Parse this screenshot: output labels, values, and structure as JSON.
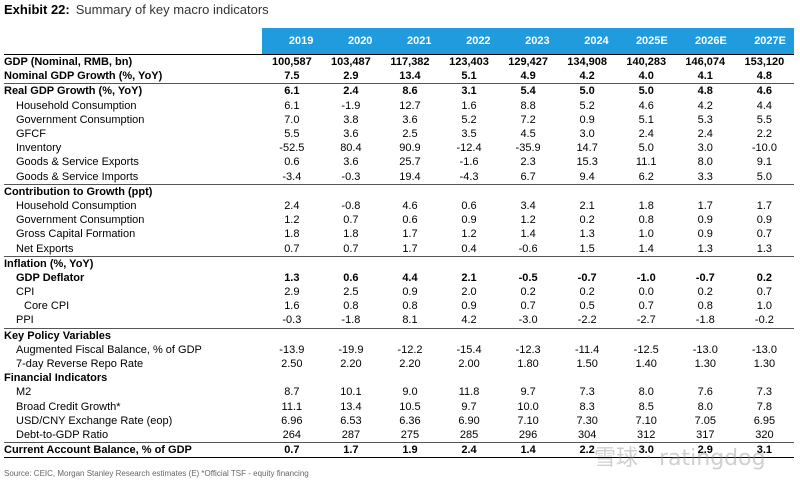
{
  "title": {
    "label": "Exhibit 22:",
    "text": "Summary of key macro indicators"
  },
  "years": [
    "2019",
    "2020",
    "2021",
    "2022",
    "2023",
    "2024",
    "2025E",
    "2026E",
    "2027E"
  ],
  "rows": [
    {
      "label": "GDP (Nominal, RMB, bn)",
      "style": "bold",
      "values": [
        "100,587",
        "103,487",
        "117,382",
        "123,403",
        "129,427",
        "134,908",
        "140,283",
        "146,074",
        "153,120"
      ]
    },
    {
      "label": "Nominal GDP Growth (%, YoY)",
      "style": "bold",
      "values": [
        "7.5",
        "2.9",
        "13.4",
        "5.1",
        "4.9",
        "4.2",
        "4.0",
        "4.1",
        "4.8"
      ]
    },
    {
      "label": "Real GDP Growth (%, YoY)",
      "style": "bold",
      "values": [
        "6.1",
        "2.4",
        "8.6",
        "3.1",
        "5.4",
        "5.0",
        "5.0",
        "4.8",
        "4.6"
      ]
    },
    {
      "label": "Household Consumption",
      "style": "sub",
      "values": [
        "6.1",
        "-1.9",
        "12.7",
        "1.6",
        "8.8",
        "5.2",
        "4.6",
        "4.2",
        "4.4"
      ]
    },
    {
      "label": "Government Consumption",
      "style": "sub",
      "values": [
        "7.0",
        "3.8",
        "3.6",
        "5.2",
        "7.2",
        "0.9",
        "5.1",
        "5.3",
        "5.5"
      ]
    },
    {
      "label": "GFCF",
      "style": "sub",
      "values": [
        "5.5",
        "3.6",
        "2.5",
        "3.5",
        "4.5",
        "3.0",
        "2.4",
        "2.4",
        "2.2"
      ]
    },
    {
      "label": "Inventory",
      "style": "sub",
      "values": [
        "-52.5",
        "80.4",
        "90.9",
        "-12.4",
        "-35.9",
        "14.7",
        "5.0",
        "3.0",
        "-10.0"
      ]
    },
    {
      "label": "Goods & Service Exports",
      "style": "sub",
      "values": [
        "0.6",
        "3.6",
        "25.7",
        "-1.6",
        "2.3",
        "15.3",
        "11.1",
        "8.0",
        "9.1"
      ]
    },
    {
      "label": "Goods & Service Imports",
      "style": "sub",
      "values": [
        "-3.4",
        "-0.3",
        "19.4",
        "-4.3",
        "6.7",
        "9.4",
        "6.2",
        "3.3",
        "5.0"
      ]
    },
    {
      "label": "Contribution to Growth (ppt)",
      "style": "section",
      "values": [
        "",
        "",
        "",
        "",
        "",
        "",
        "",
        "",
        ""
      ]
    },
    {
      "label": "Household Consumption",
      "style": "sub",
      "values": [
        "2.4",
        "-0.8",
        "4.6",
        "0.6",
        "3.4",
        "2.1",
        "1.8",
        "1.7",
        "1.7"
      ]
    },
    {
      "label": "Government Consumption",
      "style": "sub",
      "values": [
        "1.2",
        "0.7",
        "0.6",
        "0.9",
        "1.2",
        "0.2",
        "0.8",
        "0.9",
        "0.9"
      ]
    },
    {
      "label": "Gross Capital Formation",
      "style": "sub",
      "values": [
        "1.8",
        "1.8",
        "1.7",
        "1.2",
        "1.4",
        "1.3",
        "1.0",
        "0.9",
        "0.7"
      ]
    },
    {
      "label": "Net Exports",
      "style": "sub",
      "values": [
        "0.7",
        "0.7",
        "1.7",
        "0.4",
        "-0.6",
        "1.5",
        "1.4",
        "1.3",
        "1.3"
      ]
    },
    {
      "label": "Inflation (%, YoY)",
      "style": "section",
      "values": [
        "",
        "",
        "",
        "",
        "",
        "",
        "",
        "",
        ""
      ]
    },
    {
      "label": "GDP Deflator",
      "style": "subbold",
      "values": [
        "1.3",
        "0.6",
        "4.4",
        "2.1",
        "-0.5",
        "-0.7",
        "-1.0",
        "-0.7",
        "0.2"
      ]
    },
    {
      "label": "CPI",
      "style": "sub",
      "values": [
        "2.9",
        "2.5",
        "0.9",
        "2.0",
        "0.2",
        "0.2",
        "0.0",
        "0.2",
        "0.7"
      ]
    },
    {
      "label": "Core CPI",
      "style": "subsub",
      "values": [
        "1.6",
        "0.8",
        "0.8",
        "0.9",
        "0.7",
        "0.5",
        "0.7",
        "0.8",
        "1.0"
      ]
    },
    {
      "label": "PPI",
      "style": "sub",
      "values": [
        "-0.3",
        "-1.8",
        "8.1",
        "4.2",
        "-3.0",
        "-2.2",
        "-2.7",
        "-1.8",
        "-0.2"
      ]
    },
    {
      "label": "Key Policy Variables",
      "style": "section",
      "values": [
        "",
        "",
        "",
        "",
        "",
        "",
        "",
        "",
        ""
      ]
    },
    {
      "label": "Augmented Fiscal Balance, % of GDP",
      "style": "sub",
      "values": [
        "-13.9",
        "-19.9",
        "-12.2",
        "-15.4",
        "-12.3",
        "-11.4",
        "-12.5",
        "-13.0",
        "-13.0"
      ]
    },
    {
      "label": "7-day Reverse Repo Rate",
      "style": "sub",
      "values": [
        "2.50",
        "2.20",
        "2.20",
        "2.00",
        "1.80",
        "1.50",
        "1.40",
        "1.30",
        "1.30"
      ]
    },
    {
      "label": "Financial Indicators",
      "style": "sectionplain",
      "values": [
        "",
        "",
        "",
        "",
        "",
        "",
        "",
        "",
        ""
      ]
    },
    {
      "label": "M2",
      "style": "sub",
      "values": [
        "8.7",
        "10.1",
        "9.0",
        "11.8",
        "9.7",
        "7.3",
        "8.0",
        "7.6",
        "7.3"
      ]
    },
    {
      "label": "Broad Credit Growth*",
      "style": "sub",
      "values": [
        "11.1",
        "13.4",
        "10.5",
        "9.7",
        "10.0",
        "8.3",
        "8.5",
        "8.0",
        "7.8"
      ]
    },
    {
      "label": "USD/CNY Exchange Rate (eop)",
      "style": "sub",
      "values": [
        "6.96",
        "6.53",
        "6.36",
        "6.90",
        "7.10",
        "7.30",
        "7.10",
        "7.05",
        "6.95"
      ]
    },
    {
      "label": "Debt-to-GDP Ratio",
      "style": "sub",
      "values": [
        "264",
        "287",
        "275",
        "285",
        "296",
        "304",
        "312",
        "317",
        "320"
      ]
    },
    {
      "label": "Current Account Balance, % of GDP",
      "style": "sectionlast",
      "values": [
        "0.7",
        "1.7",
        "1.9",
        "2.4",
        "1.4",
        "2.2",
        "3.0",
        "2.9",
        "3.1"
      ]
    }
  ],
  "source": "Source: CEIC, Morgan Stanley Research estimates (E) *Official TSF - equity financing",
  "watermark": "雪球 · ratingdog"
}
